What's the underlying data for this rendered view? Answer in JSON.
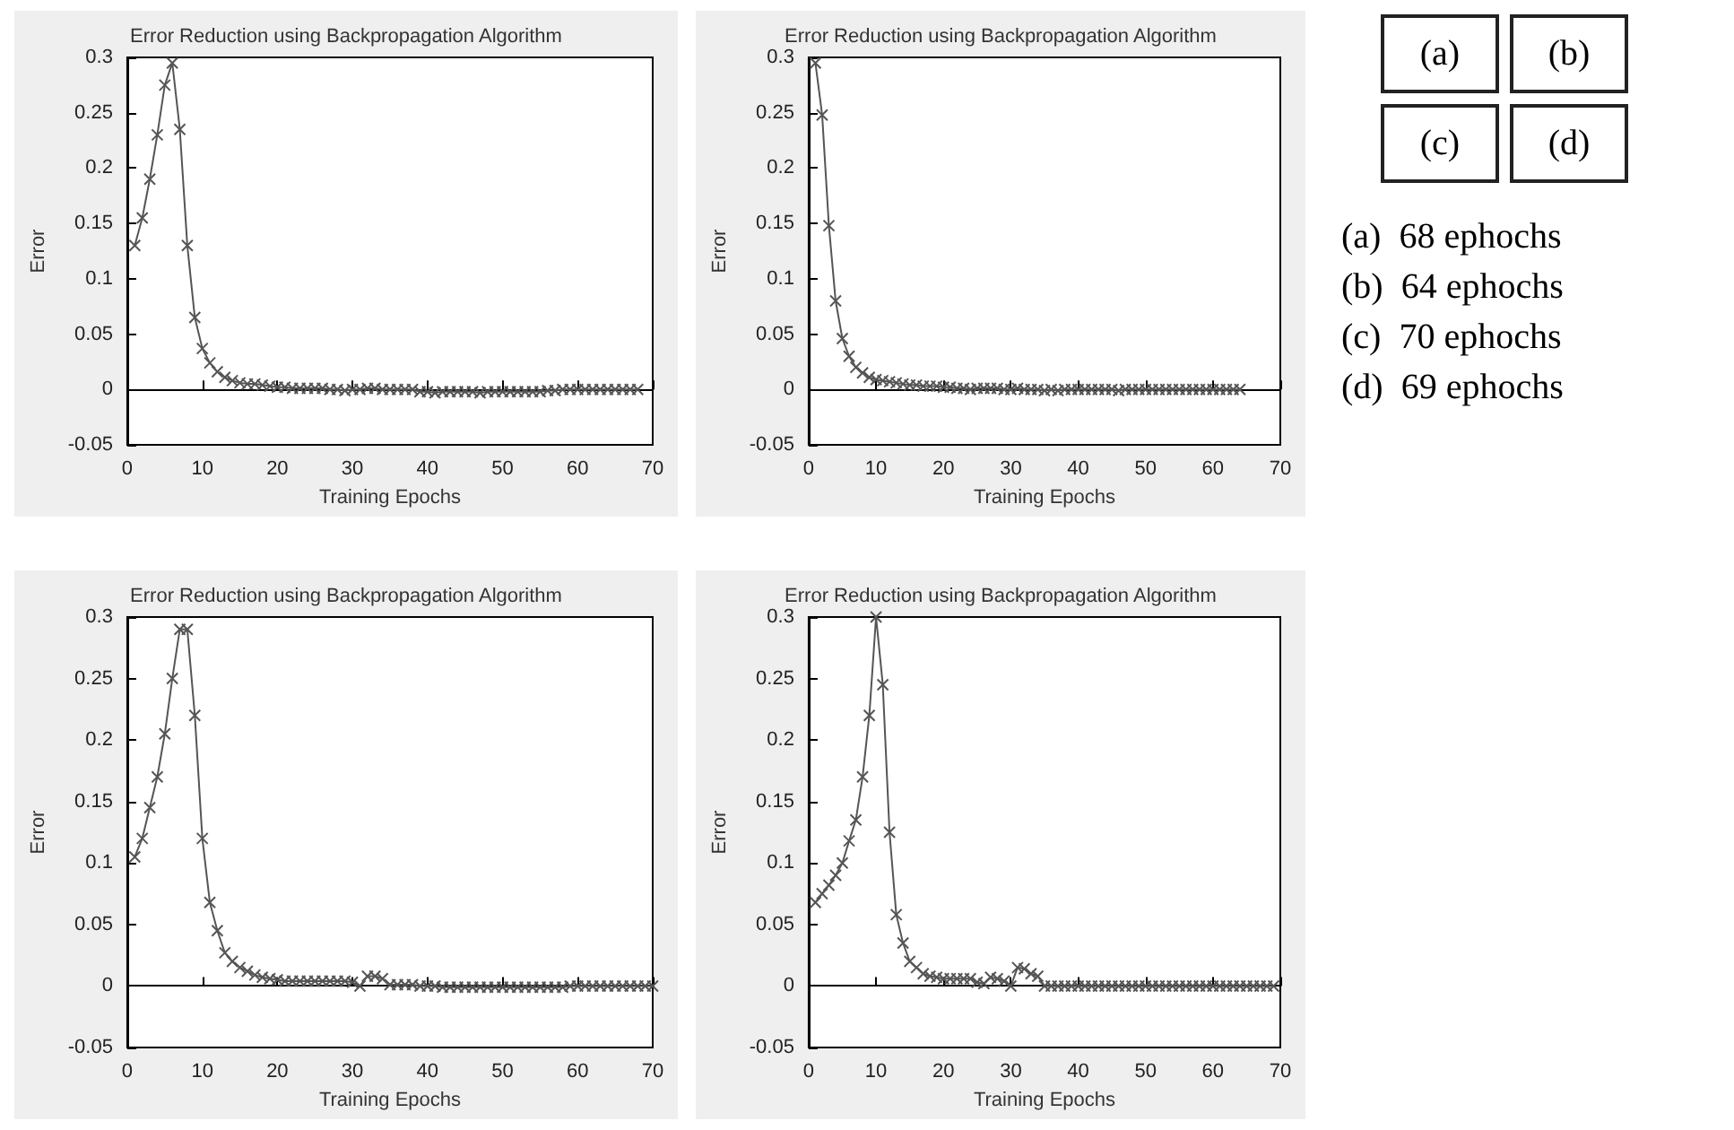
{
  "chart_data": [
    {
      "type": "line",
      "title": "Error Reduction using Backpropagation Algorithm",
      "xlabel": "Training Epochs",
      "ylabel": "Error",
      "marker": "cross",
      "line_style": "solid",
      "xlim": [
        0,
        70
      ],
      "xticks": [
        0,
        10,
        20,
        30,
        40,
        50,
        60,
        70
      ],
      "ylim": [
        -0.05,
        0.3
      ],
      "yticks": [
        -0.05,
        0,
        0.05,
        0.1,
        0.15,
        0.2,
        0.25,
        0.3
      ],
      "x": [
        1,
        2,
        3,
        4,
        5,
        6,
        7,
        8,
        9,
        10,
        11,
        12,
        13,
        14,
        15,
        16,
        17,
        18,
        19,
        20,
        21,
        22,
        23,
        24,
        25,
        26,
        27,
        28,
        29,
        30,
        31,
        32,
        33,
        34,
        35,
        36,
        37,
        38,
        39,
        40,
        41,
        42,
        43,
        44,
        45,
        46,
        47,
        48,
        49,
        50,
        51,
        52,
        53,
        54,
        55,
        56,
        57,
        58,
        59,
        60,
        61,
        62,
        63,
        64,
        65,
        66,
        67,
        68
      ],
      "series": [
        {
          "color": "#555555",
          "values": [
            0.13,
            0.155,
            0.19,
            0.23,
            0.275,
            0.295,
            0.235,
            0.13,
            0.065,
            0.037,
            0.024,
            0.016,
            0.011,
            0.008,
            0.006,
            0.005,
            0.005,
            0.004,
            0.003,
            0.002,
            0.002,
            0.001,
            0.001,
            0.001,
            0.001,
            0.001,
            0.0,
            0.0,
            -0.001,
            0.0,
            0.0,
            0.001,
            0.001,
            0.0,
            0.0,
            0.0,
            0.0,
            0.0,
            -0.002,
            -0.002,
            -0.003,
            -0.002,
            -0.002,
            -0.002,
            -0.002,
            -0.002,
            -0.003,
            -0.002,
            -0.002,
            -0.002,
            -0.002,
            -0.002,
            -0.002,
            -0.002,
            -0.002,
            -0.001,
            -0.001,
            0.0,
            0.0,
            0.0,
            0.0,
            0.0,
            0.0,
            0.0,
            0.0,
            0.0,
            0.0,
            0.0
          ]
        }
      ]
    },
    {
      "type": "line",
      "title": "Error Reduction using Backpropagation Algorithm",
      "xlabel": "Training Epochs",
      "ylabel": "Error",
      "marker": "cross",
      "line_style": "solid",
      "xlim": [
        0,
        70
      ],
      "xticks": [
        0,
        10,
        20,
        30,
        40,
        50,
        60,
        70
      ],
      "ylim": [
        -0.05,
        0.3
      ],
      "yticks": [
        -0.05,
        0,
        0.05,
        0.1,
        0.15,
        0.2,
        0.25,
        0.3
      ],
      "x": [
        1,
        2,
        3,
        4,
        5,
        6,
        7,
        8,
        9,
        10,
        11,
        12,
        13,
        14,
        15,
        16,
        17,
        18,
        19,
        20,
        21,
        22,
        23,
        24,
        25,
        26,
        27,
        28,
        29,
        30,
        31,
        32,
        33,
        34,
        35,
        36,
        37,
        38,
        39,
        40,
        41,
        42,
        43,
        44,
        45,
        46,
        47,
        48,
        49,
        50,
        51,
        52,
        53,
        54,
        55,
        56,
        57,
        58,
        59,
        60,
        61,
        62,
        63,
        64
      ],
      "series": [
        {
          "color": "#555555",
          "values": [
            0.295,
            0.248,
            0.148,
            0.08,
            0.046,
            0.03,
            0.02,
            0.015,
            0.011,
            0.009,
            0.008,
            0.007,
            0.006,
            0.005,
            0.004,
            0.004,
            0.003,
            0.003,
            0.003,
            0.002,
            0.002,
            0.001,
            0.001,
            0.0,
            0.001,
            0.001,
            0.001,
            0.001,
            0.0,
            0.0,
            0.001,
            0.0,
            0.0,
            0.0,
            -0.001,
            0.0,
            -0.001,
            0.0,
            0.0,
            0.0,
            0.0,
            0.0,
            0.0,
            0.0,
            0.0,
            -0.001,
            0.0,
            0.0,
            0.0,
            0.0,
            0.0,
            0.0,
            0.0,
            0.0,
            0.0,
            0.0,
            0.0,
            0.0,
            0.0,
            0.0,
            0.0,
            0.0,
            0.0,
            0.0
          ]
        }
      ]
    },
    {
      "type": "line",
      "title": "Error Reduction using Backpropagation Algorithm",
      "xlabel": "Training Epochs",
      "ylabel": "Error",
      "marker": "cross",
      "line_style": "solid",
      "xlim": [
        0,
        70
      ],
      "xticks": [
        0,
        10,
        20,
        30,
        40,
        50,
        60,
        70
      ],
      "ylim": [
        -0.05,
        0.3
      ],
      "yticks": [
        -0.05,
        0,
        0.05,
        0.1,
        0.15,
        0.2,
        0.25,
        0.3
      ],
      "x": [
        1,
        2,
        3,
        4,
        5,
        6,
        7,
        8,
        9,
        10,
        11,
        12,
        13,
        14,
        15,
        16,
        17,
        18,
        19,
        20,
        21,
        22,
        23,
        24,
        25,
        26,
        27,
        28,
        29,
        30,
        31,
        32,
        33,
        34,
        35,
        36,
        37,
        38,
        39,
        40,
        41,
        42,
        43,
        44,
        45,
        46,
        47,
        48,
        49,
        50,
        51,
        52,
        53,
        54,
        55,
        56,
        57,
        58,
        59,
        60,
        61,
        62,
        63,
        64,
        65,
        66,
        67,
        68,
        69,
        70
      ],
      "series": [
        {
          "color": "#555555",
          "values": [
            0.105,
            0.12,
            0.145,
            0.17,
            0.205,
            0.25,
            0.29,
            0.29,
            0.22,
            0.12,
            0.068,
            0.045,
            0.027,
            0.02,
            0.015,
            0.012,
            0.009,
            0.007,
            0.006,
            0.005,
            0.004,
            0.004,
            0.004,
            0.004,
            0.004,
            0.004,
            0.004,
            0.004,
            0.004,
            0.003,
            0.0,
            0.008,
            0.008,
            0.006,
            0.001,
            0.001,
            0.001,
            0.001,
            0.0,
            0.0,
            0.0,
            -0.001,
            -0.001,
            -0.001,
            -0.001,
            -0.001,
            -0.001,
            -0.001,
            -0.001,
            -0.001,
            -0.001,
            -0.001,
            -0.001,
            -0.001,
            -0.001,
            -0.001,
            -0.001,
            -0.001,
            0.0,
            0.0,
            0.0,
            0.0,
            0.0,
            0.0,
            0.0,
            0.0,
            0.0,
            0.0,
            0.0,
            0.0
          ]
        }
      ]
    },
    {
      "type": "line",
      "title": "Error Reduction using Backpropagation Algorithm",
      "xlabel": "Training Epochs",
      "ylabel": "Error",
      "marker": "cross",
      "line_style": "solid",
      "xlim": [
        0,
        70
      ],
      "xticks": [
        0,
        10,
        20,
        30,
        40,
        50,
        60,
        70
      ],
      "ylim": [
        -0.05,
        0.3
      ],
      "yticks": [
        -0.05,
        0,
        0.05,
        0.1,
        0.15,
        0.2,
        0.25,
        0.3
      ],
      "x": [
        1,
        2,
        3,
        4,
        5,
        6,
        7,
        8,
        9,
        10,
        11,
        12,
        13,
        14,
        15,
        16,
        17,
        18,
        19,
        20,
        21,
        22,
        23,
        24,
        25,
        26,
        27,
        28,
        29,
        30,
        31,
        32,
        33,
        34,
        35,
        36,
        37,
        38,
        39,
        40,
        41,
        42,
        43,
        44,
        45,
        46,
        47,
        48,
        49,
        50,
        51,
        52,
        53,
        54,
        55,
        56,
        57,
        58,
        59,
        60,
        61,
        62,
        63,
        64,
        65,
        66,
        67,
        68,
        69
      ],
      "series": [
        {
          "color": "#555555",
          "values": [
            0.068,
            0.075,
            0.082,
            0.09,
            0.1,
            0.118,
            0.135,
            0.17,
            0.22,
            0.3,
            0.245,
            0.125,
            0.058,
            0.035,
            0.02,
            0.015,
            0.01,
            0.008,
            0.007,
            0.006,
            0.006,
            0.006,
            0.006,
            0.006,
            0.003,
            0.002,
            0.007,
            0.006,
            0.004,
            0.0,
            0.015,
            0.014,
            0.01,
            0.008,
            0.0,
            0.0,
            0.0,
            0.0,
            0.0,
            0.0,
            0.0,
            0.0,
            0.0,
            0.0,
            0.0,
            0.0,
            0.0,
            0.0,
            0.0,
            0.0,
            0.0,
            0.0,
            0.0,
            0.0,
            0.0,
            0.0,
            0.0,
            0.0,
            0.0,
            0.0,
            0.0,
            0.0,
            0.0,
            0.0,
            0.0,
            0.0,
            0.0,
            0.0,
            0.0
          ]
        }
      ]
    },
    {
      "type": "other",
      "annotations": [
        "(a)",
        "(b)",
        "(c)",
        "(d)",
        "(a)  68 ephochs",
        "(b)  64 ephochs",
        "(c)  70 ephochs",
        "(d)  69 ephochs"
      ]
    }
  ]
}
